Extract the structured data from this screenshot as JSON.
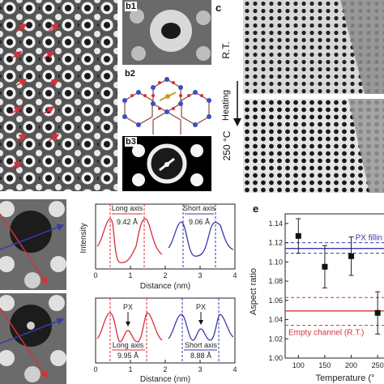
{
  "labels": {
    "b1": "b1",
    "b2": "b2",
    "b3": "b3",
    "c": "c",
    "e": "e"
  },
  "panel_c": {
    "top_label": "R.T.",
    "arrow_label": "Heating",
    "bottom_label": "250 °C"
  },
  "profiles_top": {
    "long_axis_label": "Long axis",
    "long_axis_value": "9.42 Å",
    "short_axis_label": "Short axis",
    "short_axis_value": "9.06 Å"
  },
  "profiles_bottom": {
    "long_axis_label": "Long axis",
    "long_axis_value": "9.95 Å",
    "short_axis_label": "Short axis",
    "short_axis_value": "8.88 Å",
    "px_label_1": "PX",
    "px_label_2": "PX"
  },
  "profile_axes": {
    "ylabel": "Intensity",
    "xlabel": "Distance (nm)",
    "xticks": [
      "0",
      "1",
      "2",
      "3",
      "4"
    ]
  },
  "colors": {
    "red": "#d6313a",
    "blue": "#3a3aa8",
    "black": "#111111"
  },
  "chart_data": {
    "type": "scatter",
    "title": "",
    "xlabel": "Temperature (°",
    "ylabel": "Aspect ratio",
    "x": [
      100,
      150,
      200,
      250
    ],
    "y": [
      1.127,
      1.095,
      1.106,
      1.047
    ],
    "yerr": [
      0.018,
      0.022,
      0.02,
      0.022
    ],
    "xticks": [
      "100",
      "150",
      "200",
      "250"
    ],
    "yticks": [
      "1.00",
      "1.02",
      "1.04",
      "1.06",
      "1.08",
      "1.10",
      "1.12",
      "1.14"
    ],
    "xlim": [
      75,
      262
    ],
    "ylim": [
      1.0,
      1.15
    ],
    "reference_lines": [
      {
        "label": "PX fillin",
        "value": 1.114,
        "band": [
          1.109,
          1.12
        ],
        "color": "#3a3aa8"
      },
      {
        "label": "Empty channel (R.T.)",
        "value": 1.049,
        "band": [
          1.034,
          1.063
        ],
        "color": "#d6313a"
      }
    ]
  }
}
